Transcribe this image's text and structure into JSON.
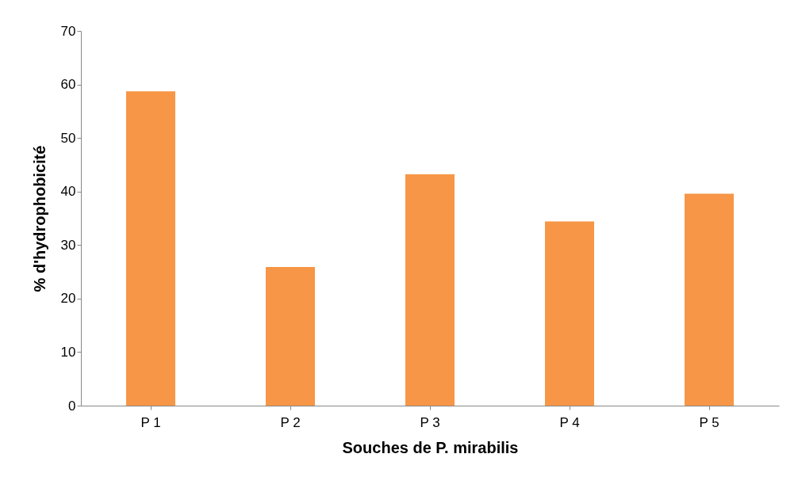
{
  "chart_data": {
    "type": "bar",
    "xlabel": "Souches de P. mirabilis",
    "ylabel": "% d'hydrophobicité",
    "categories": [
      "P 1",
      "P 2",
      "P 3",
      "P 4",
      "P 5"
    ],
    "values": [
      58.7,
      25.9,
      43.2,
      34.4,
      39.6
    ],
    "color": "#f79646",
    "ylim": [
      0,
      70
    ],
    "yticks": [
      0,
      10,
      20,
      30,
      40,
      50,
      60,
      70
    ],
    "grid": false
  }
}
